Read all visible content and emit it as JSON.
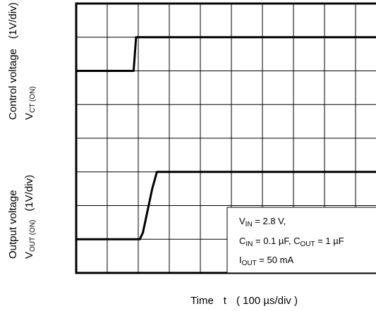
{
  "chart_data": {
    "type": "line",
    "title": "",
    "grid": true,
    "x_divisions": 10,
    "y_divisions": 8,
    "xlabel": {
      "prefix": "Time",
      "symbol": "t",
      "unit": "( 100 µs/div )"
    },
    "ylabel_top": {
      "line1": "Control voltage",
      "scale": "(1V/div)",
      "symbol_main": "V",
      "symbol_sub": "CT (ON)"
    },
    "ylabel_bottom": {
      "line1": "Output voltage",
      "symbol_main": "V",
      "symbol_sub": "OUT (ON)",
      "scale": "(1V/div)"
    },
    "series": [
      {
        "x": [
          0,
          1.85,
          1.93,
          10
        ],
        "y": [
          6.0,
          6.0,
          7.0,
          7.0
        ]
      },
      {
        "x": [
          0,
          2.05,
          2.15,
          2.45,
          2.6,
          10
        ],
        "y": [
          1.0,
          1.0,
          1.2,
          2.5,
          3.0,
          3.0
        ]
      }
    ],
    "annotation": {
      "line1_main": "V",
      "line1_sub": "IN",
      "line1_rest": " = 2.8 V,",
      "line2_main1": "C",
      "line2_sub1": "IN",
      "line2_rest1": " = 0.1 µF, C",
      "line2_sub2": "OUT",
      "line2_rest2": " = 1 µF",
      "line3_main": "I",
      "line3_sub": "OUT",
      "line3_rest": " = 50 mA"
    }
  }
}
